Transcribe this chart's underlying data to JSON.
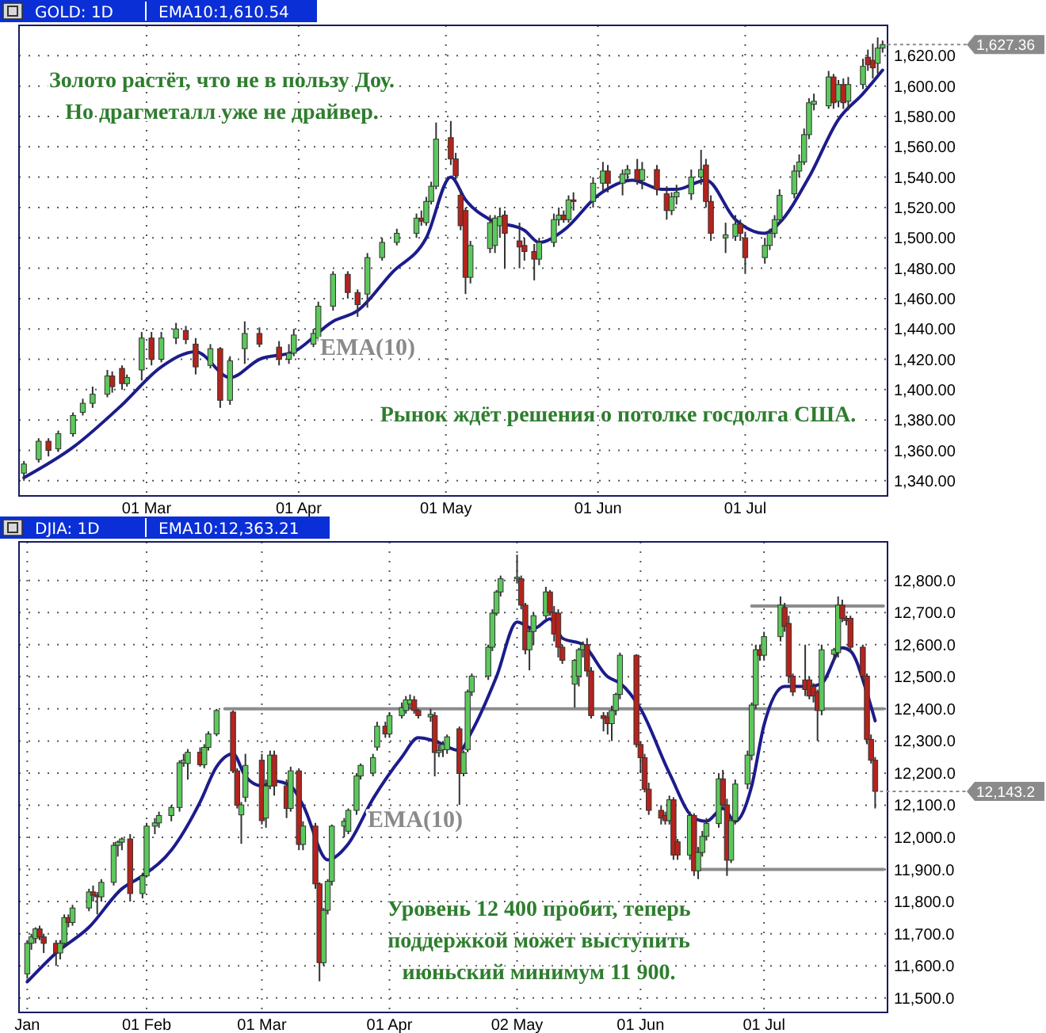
{
  "chart_data": [
    {
      "type": "candlestick",
      "title": "GOLD: 1D",
      "subtitle": "EMA10:1,610.54",
      "grid": true,
      "xlim": [
        "--02-03",
        "--07-30"
      ],
      "xticks": [
        {
          "value": "--03-01",
          "label": "01 Mar"
        },
        {
          "value": "--04-01",
          "label": "01 Apr"
        },
        {
          "value": "--05-01",
          "label": "01 May"
        },
        {
          "value": "--06-01",
          "label": "01 Jun"
        },
        {
          "value": "--07-01",
          "label": "01 Jul"
        }
      ],
      "ylim": [
        1330,
        1640
      ],
      "yticks": [
        {
          "value": 1340,
          "label": "1,340.00"
        },
        {
          "value": 1360,
          "label": "1,360.00"
        },
        {
          "value": 1380,
          "label": "1,380.00"
        },
        {
          "value": 1400,
          "label": "1,400.00"
        },
        {
          "value": 1420,
          "label": "1,420.00"
        },
        {
          "value": 1440,
          "label": "1,440.00"
        },
        {
          "value": 1460,
          "label": "1,460.00"
        },
        {
          "value": 1480,
          "label": "1,480.00"
        },
        {
          "value": 1500,
          "label": "1,500.00"
        },
        {
          "value": 1520,
          "label": "1,520.00"
        },
        {
          "value": 1540,
          "label": "1,540.00"
        },
        {
          "value": 1560,
          "label": "1,560.00"
        },
        {
          "value": 1580,
          "label": "1,580.00"
        },
        {
          "value": 1600,
          "label": "1,600.00"
        },
        {
          "value": 1620,
          "label": "1,620.00"
        }
      ],
      "annotations": [
        "Золото растёт, что не в пользу Доу.",
        "Но драгметалл уже не драйвер.",
        "EMA(10)",
        "Рынок ждёт решения о потолке госдолга США.",
        {
          "text": "1,627.36",
          "x": "--07-29",
          "y": 1627.36
        }
      ],
      "series": [
        {
          "type": "line",
          "color": "#1c1c8c",
          "x": [
            "--02-04",
            "--02-14",
            "--02-24",
            "--03-04",
            "--03-11",
            "--03-18",
            "--03-24",
            "--03-31",
            "--04-08",
            "--04-13",
            "--04-20",
            "--04-27",
            "--05-02",
            "--05-05",
            "--05-10",
            "--05-17",
            "--05-20",
            "--05-25",
            "--06-01",
            "--06-08",
            "--06-14",
            "--06-17",
            "--06-23",
            "--06-29",
            "--07-05",
            "--07-08",
            "--07-14",
            "--07-20",
            "--07-25",
            "--07-29"
          ],
          "values": [
            1342,
            1362,
            1390,
            1415,
            1425,
            1408,
            1420,
            1425,
            1445,
            1452,
            1477,
            1500,
            1540,
            1525,
            1512,
            1505,
            1497,
            1505,
            1528,
            1538,
            1532,
            1532,
            1538,
            1512,
            1503,
            1510,
            1540,
            1578,
            1595,
            1610.5
          ]
        },
        {
          "type": "candlestick",
          "x": [
            "--02-04",
            "--02-07",
            "--02-09",
            "--02-11",
            "--02-14",
            "--02-16",
            "--02-18",
            "--02-21",
            "--02-22",
            "--02-24",
            "--02-25",
            "--02-28",
            "--03-02",
            "--03-04",
            "--03-07",
            "--03-09",
            "--03-11",
            "--03-14",
            "--03-16",
            "--03-18",
            "--03-21",
            "--03-24",
            "--03-28",
            "--03-30",
            "--03-31",
            "--04-04",
            "--04-05",
            "--04-08",
            "--04-11",
            "--04-13",
            "--04-15",
            "--04-18",
            "--04-21",
            "--04-25",
            "--04-26",
            "--04-27",
            "--04-28",
            "--04-29",
            "--05-02",
            "--05-03",
            "--05-04",
            "--05-05",
            "--05-06",
            "--05-10",
            "--05-11",
            "--05-12",
            "--05-13",
            "--05-16",
            "--05-17",
            "--05-19",
            "--05-20",
            "--05-23",
            "--05-24",
            "--05-25",
            "--05-26",
            "--05-27",
            "--05-31",
            "--06-02",
            "--06-03",
            "--06-06",
            "--06-07",
            "--06-09",
            "--06-10",
            "--06-13",
            "--06-15",
            "--06-16",
            "--06-17",
            "--06-20",
            "--06-22",
            "--06-23",
            "--06-24",
            "--06-27",
            "--06-29",
            "--06-30",
            "--07-01",
            "--07-05",
            "--07-06",
            "--07-07",
            "--07-08",
            "--07-11",
            "--07-12",
            "--07-13",
            "--07-14",
            "--07-15",
            "--07-18",
            "--07-19",
            "--07-20",
            "--07-21",
            "--07-22",
            "--07-25",
            "--07-26",
            "--07-27",
            "--07-28",
            "--07-29"
          ],
          "ohlc": [
            [
              1345,
              1353,
              1340,
              1351
            ],
            [
              1354,
              1368,
              1352,
              1366
            ],
            [
              1366,
              1368,
              1356,
              1360
            ],
            [
              1361,
              1373,
              1359,
              1371
            ],
            [
              1371,
              1385,
              1369,
              1383
            ],
            [
              1385,
              1394,
              1383,
              1391
            ],
            [
              1391,
              1402,
              1388,
              1397
            ],
            [
              1397,
              1413,
              1395,
              1409
            ],
            [
              1409,
              1412,
              1398,
              1402
            ],
            [
              1414,
              1416,
              1400,
              1404
            ],
            [
              1404,
              1410,
              1402,
              1408
            ],
            [
              1413,
              1438,
              1406,
              1434
            ],
            [
              1434,
              1438,
              1416,
              1420
            ],
            [
              1420,
              1438,
              1418,
              1434
            ],
            [
              1434,
              1444,
              1430,
              1440
            ],
            [
              1439,
              1442,
              1430,
              1433
            ],
            [
              1430,
              1434,
              1410,
              1415
            ],
            [
              1416,
              1430,
              1414,
              1427
            ],
            [
              1427,
              1428,
              1388,
              1393
            ],
            [
              1393,
              1422,
              1390,
              1419
            ],
            [
              1427,
              1445,
              1417,
              1437
            ],
            [
              1437,
              1441,
              1428,
              1430
            ],
            [
              1428,
              1432,
              1416,
              1420
            ],
            [
              1420,
              1430,
              1417,
              1424
            ],
            [
              1424,
              1440,
              1422,
              1436
            ],
            [
              1430,
              1440,
              1428,
              1437
            ],
            [
              1434,
              1458,
              1432,
              1455
            ],
            [
              1455,
              1478,
              1452,
              1476
            ],
            [
              1476,
              1478,
              1460,
              1464
            ],
            [
              1464,
              1466,
              1448,
              1456
            ],
            [
              1463,
              1490,
              1454,
              1487
            ],
            [
              1487,
              1500,
              1485,
              1497
            ],
            [
              1497,
              1506,
              1495,
              1503
            ],
            [
              1503,
              1516,
              1500,
              1513
            ],
            [
              1513,
              1518,
              1508,
              1511
            ],
            [
              1510,
              1527,
              1508,
              1524
            ],
            [
              1524,
              1537,
              1522,
              1534
            ],
            [
              1534,
              1576,
              1532,
              1565
            ],
            [
              1566,
              1577,
              1548,
              1552
            ],
            [
              1552,
              1556,
              1538,
              1541
            ],
            [
              1528,
              1532,
              1505,
              1508
            ],
            [
              1518,
              1520,
              1463,
              1474
            ],
            [
              1474,
              1498,
              1470,
              1495
            ],
            [
              1493,
              1515,
              1490,
              1510
            ],
            [
              1495,
              1515,
              1490,
              1513
            ],
            [
              1508,
              1520,
              1500,
              1514
            ],
            [
              1515,
              1518,
              1480,
              1503
            ],
            [
              1498,
              1510,
              1480,
              1494
            ],
            [
              1495,
              1500,
              1485,
              1491
            ],
            [
              1491,
              1496,
              1472,
              1486
            ],
            [
              1486,
              1500,
              1482,
              1497
            ],
            [
              1497,
              1516,
              1494,
              1512
            ],
            [
              1512,
              1520,
              1508,
              1515
            ],
            [
              1515,
              1518,
              1510,
              1512
            ],
            [
              1512,
              1528,
              1510,
              1525
            ],
            [
              1525,
              1530,
              1518,
              1524
            ],
            [
              1524,
              1540,
              1520,
              1536
            ],
            [
              1536,
              1550,
              1530,
              1544
            ],
            [
              1544,
              1548,
              1530,
              1536
            ],
            [
              1536,
              1545,
              1528,
              1542
            ],
            [
              1542,
              1548,
              1538,
              1545
            ],
            [
              1545,
              1552,
              1535,
              1538
            ],
            [
              1538,
              1550,
              1532,
              1545
            ],
            [
              1545,
              1548,
              1528,
              1532
            ],
            [
              1529,
              1534,
              1512,
              1518
            ],
            [
              1518,
              1530,
              1515,
              1527
            ],
            [
              1527,
              1535,
              1522,
              1530
            ],
            [
              1529,
              1545,
              1525,
              1540
            ],
            [
              1540,
              1558,
              1535,
              1545
            ],
            [
              1548,
              1552,
              1520,
              1524
            ],
            [
              1524,
              1528,
              1498,
              1503
            ],
            [
              1500,
              1510,
              1490,
              1502
            ],
            [
              1501,
              1515,
              1498,
              1509
            ],
            [
              1509,
              1512,
              1498,
              1503
            ],
            [
              1500,
              1504,
              1477,
              1487
            ],
            [
              1487,
              1500,
              1483,
              1495
            ],
            [
              1495,
              1506,
              1492,
              1503
            ],
            [
              1503,
              1515,
              1500,
              1512
            ],
            [
              1512,
              1532,
              1510,
              1528
            ],
            [
              1529,
              1548,
              1526,
              1544
            ],
            [
              1544,
              1555,
              1540,
              1550
            ],
            [
              1550,
              1572,
              1548,
              1568
            ],
            [
              1568,
              1592,
              1565,
              1589
            ],
            [
              1588,
              1595,
              1584,
              1590
            ],
            [
              1587,
              1610,
              1585,
              1606
            ],
            [
              1606,
              1608,
              1585,
              1589
            ],
            [
              1590,
              1604,
              1586,
              1601
            ],
            [
              1601,
              1605,
              1585,
              1589
            ],
            [
              1590,
              1606,
              1584,
              1601
            ],
            [
              1601,
              1618,
              1598,
              1613
            ],
            [
              1619,
              1624,
              1610,
              1614
            ],
            [
              1617,
              1628,
              1605,
              1612
            ],
            [
              1615,
              1632,
              1608,
              1625
            ],
            [
              1625,
              1630,
              1622,
              1627.36
            ]
          ]
        }
      ]
    },
    {
      "type": "candlestick",
      "title": "DJIA: 1D",
      "subtitle": "EMA10:12,363.21",
      "grid": true,
      "xlim": [
        "--01-01",
        "--07-31"
      ],
      "xticks": [
        {
          "value": "--01-03",
          "label": "Jan"
        },
        {
          "value": "--02-01",
          "label": "01 Feb"
        },
        {
          "value": "--03-01",
          "label": "01 Mar"
        },
        {
          "value": "--04-01",
          "label": "01 Apr"
        },
        {
          "value": "--05-02",
          "label": "02 May"
        },
        {
          "value": "--06-01",
          "label": "01 Jun"
        },
        {
          "value": "--07-01",
          "label": "01 Jul"
        }
      ],
      "ylim": [
        11455,
        12920
      ],
      "yticks": [
        {
          "value": 11500,
          "label": "11,500.0"
        },
        {
          "value": 11600,
          "label": "11,600.0"
        },
        {
          "value": 11700,
          "label": "11,700.0"
        },
        {
          "value": 11800,
          "label": "11,800.0"
        },
        {
          "value": 11900,
          "label": "11,900.0"
        },
        {
          "value": 12000,
          "label": "12,000.0"
        },
        {
          "value": 12100,
          "label": "12,100.0"
        },
        {
          "value": 12200,
          "label": "12,200.0"
        },
        {
          "value": 12300,
          "label": "12,300.0"
        },
        {
          "value": 12400,
          "label": "12,400.0"
        },
        {
          "value": 12500,
          "label": "12,500.0"
        },
        {
          "value": 12600,
          "label": "12,600.0"
        },
        {
          "value": 12700,
          "label": "12,700.0"
        },
        {
          "value": 12800,
          "label": "12,800.0"
        }
      ],
      "annotations": [
        "EMA(10)",
        "Уровень 12 400 пробит, теперь",
        "поддержкой может выступить",
        "июньский минимум 11 900.",
        {
          "text": "12,143.2",
          "x": "--07-28",
          "y": 12143.2
        }
      ],
      "series": [
        {
          "type": "line",
          "color": "#8c8c8c",
          "x": [
            "--02-20",
            "--07-30"
          ],
          "values": [
            12400,
            12400
          ]
        },
        {
          "type": "line",
          "color": "#8c8c8c",
          "x": [
            "--06-28",
            "--07-30"
          ],
          "values": [
            12720,
            12720
          ]
        },
        {
          "type": "line",
          "color": "#8c8c8c",
          "x": [
            "--06-15",
            "--07-30"
          ],
          "values": [
            11900,
            11900
          ]
        },
        {
          "type": "line",
          "color": "#1c1c8c",
          "x": [
            "--01-03",
            "--01-10",
            "--01-18",
            "--01-26",
            "--01-31",
            "--02-07",
            "--02-14",
            "--02-18",
            "--02-22",
            "--02-25",
            "--03-01",
            "--03-04",
            "--03-08",
            "--03-11",
            "--03-17",
            "--03-22",
            "--03-28",
            "--04-04",
            "--04-08",
            "--04-12",
            "--04-18",
            "--04-21",
            "--04-27",
            "--05-02",
            "--05-06",
            "--05-10",
            "--05-13",
            "--05-18",
            "--05-24",
            "--05-27",
            "--06-01",
            "--06-08",
            "--06-14",
            "--06-17",
            "--06-21",
            "--06-24",
            "--06-28",
            "--07-01",
            "--07-06",
            "--07-12",
            "--07-15",
            "--07-20",
            "--07-22",
            "--07-26",
            "--07-28"
          ],
          "values": [
            11550,
            11640,
            11720,
            11840,
            11880,
            11960,
            12110,
            12220,
            12260,
            12190,
            12160,
            12175,
            12160,
            12100,
            11930,
            11980,
            12120,
            12250,
            12310,
            12300,
            12270,
            12330,
            12500,
            12670,
            12650,
            12680,
            12620,
            12600,
            12500,
            12480,
            12400,
            12200,
            12060,
            12050,
            12090,
            12050,
            12160,
            12350,
            12470,
            12470,
            12480,
            12590,
            12580,
            12450,
            12363
          ]
        },
        {
          "type": "candlestick",
          "x": [
            "--01-03",
            "--01-04",
            "--01-05",
            "--01-06",
            "--01-07",
            "--01-10",
            "--01-11",
            "--01-12",
            "--01-13",
            "--01-14",
            "--01-18",
            "--01-19",
            "--01-20",
            "--01-21",
            "--01-24",
            "--01-25",
            "--01-26",
            "--01-28",
            "--01-31",
            "--02-01",
            "--02-03",
            "--02-04",
            "--02-07",
            "--02-09",
            "--02-10",
            "--02-11",
            "--02-14",
            "--02-15",
            "--02-16",
            "--02-18",
            "--02-22",
            "--02-23",
            "--02-24",
            "--02-25",
            "--03-01",
            "--03-02",
            "--03-03",
            "--03-04",
            "--03-07",
            "--03-08",
            "--03-10",
            "--03-11",
            "--03-14",
            "--03-15",
            "--03-16",
            "--03-17",
            "--03-18",
            "--03-21",
            "--03-22",
            "--03-24",
            "--03-25",
            "--03-28",
            "--03-29",
            "--03-31",
            "--04-01",
            "--04-04",
            "--04-05",
            "--04-06",
            "--04-07",
            "--04-08",
            "--04-11",
            "--04-12",
            "--04-13",
            "--04-14",
            "--04-15",
            "--04-18",
            "--04-19",
            "--04-20",
            "--04-21",
            "--04-25",
            "--04-26",
            "--04-27",
            "--04-28",
            "--05-02",
            "--05-03",
            "--05-04",
            "--05-05",
            "--05-06",
            "--05-09",
            "--05-10",
            "--05-11",
            "--05-12",
            "--05-13",
            "--05-16",
            "--05-17",
            "--05-18",
            "--05-19",
            "--05-20",
            "--05-23",
            "--05-24",
            "--05-25",
            "--05-26",
            "--05-27",
            "--05-31",
            "--06-01",
            "--06-02",
            "--06-03",
            "--06-06",
            "--06-07",
            "--06-08",
            "--06-09",
            "--06-10",
            "--06-13",
            "--06-14",
            "--06-15",
            "--06-16",
            "--06-17",
            "--06-20",
            "--06-21",
            "--06-22",
            "--06-23",
            "--06-24",
            "--06-27",
            "--06-28",
            "--06-29",
            "--06-30",
            "--07-01",
            "--07-05",
            "--07-06",
            "--07-07",
            "--07-08",
            "--07-11",
            "--07-12",
            "--07-13",
            "--07-14",
            "--07-15",
            "--07-18",
            "--07-19",
            "--07-20",
            "--07-21",
            "--07-22",
            "--07-25",
            "--07-26",
            "--07-27",
            "--07-28"
          ],
          "ohlc": [
            [
              11575,
              11680,
              11560,
              11670
            ],
            [
              11670,
              11700,
              11650,
              11690
            ],
            [
              11685,
              11720,
              11670,
              11715
            ],
            [
              11715,
              11725,
              11680,
              11690
            ],
            [
              11690,
              11700,
              11640,
              11670
            ],
            [
              11670,
              11680,
              11600,
              11640
            ],
            [
              11640,
              11680,
              11620,
              11670
            ],
            [
              11670,
              11760,
              11660,
              11750
            ],
            [
              11750,
              11760,
              11720,
              11735
            ],
            [
              11735,
              11790,
              11725,
              11780
            ],
            [
              11780,
              11840,
              11770,
              11830
            ],
            [
              11830,
              11850,
              11800,
              11820
            ],
            [
              11820,
              11830,
              11760,
              11815
            ],
            [
              11815,
              11870,
              11800,
              11860
            ],
            [
              11860,
              11985,
              11850,
              11975
            ],
            [
              11975,
              11990,
              11940,
              11985
            ],
            [
              11985,
              12000,
              11960,
              11995
            ],
            [
              11995,
              12010,
              11800,
              11825
            ],
            [
              11825,
              11890,
              11810,
              11880
            ],
            [
              11880,
              12045,
              11875,
              12035
            ],
            [
              12035,
              12060,
              12010,
              12045
            ],
            [
              12045,
              12080,
              12030,
              12068
            ],
            [
              12068,
              12100,
              12050,
              12093
            ],
            [
              12093,
              12240,
              12080,
              12232
            ],
            [
              12232,
              12260,
              12220,
              12240
            ],
            [
              12230,
              12275,
              12180,
              12265
            ],
            [
              12265,
              12280,
              12220,
              12226
            ],
            [
              12226,
              12290,
              12215,
              12280
            ],
            [
              12280,
              12330,
              12270,
              12322
            ],
            [
              12322,
              12400,
              12315,
              12395
            ],
            [
              12390,
              12395,
              12200,
              12207
            ],
            [
              12207,
              12215,
              12090,
              12100
            ],
            [
              12070,
              12110,
              11980,
              12101
            ],
            [
              12125,
              12260,
              12110,
              12224
            ],
            [
              12240,
              12260,
              12040,
              12052
            ],
            [
              12060,
              12180,
              12030,
              12160
            ],
            [
              12160,
              12270,
              12150,
              12256
            ],
            [
              12256,
              12270,
              12130,
              12160
            ],
            [
              12160,
              12180,
              12060,
              12090
            ],
            [
              12090,
              12220,
              12080,
              12207
            ],
            [
              12207,
              12215,
              11960,
              11978
            ],
            [
              11978,
              12050,
              11960,
              12035
            ],
            [
              12035,
              12045,
              11840,
              11855
            ],
            [
              11855,
              11860,
              11552,
              11610
            ],
            [
              11610,
              11780,
              11600,
              11773
            ],
            [
              11773,
              11870,
              11760,
              11863
            ],
            [
              11863,
              12040,
              11850,
              12035
            ],
            [
              12035,
              12060,
              12000,
              12050
            ],
            [
              12019,
              12090,
              12010,
              12084
            ],
            [
              12084,
              12200,
              12070,
              12191
            ],
            [
              12191,
              12230,
              12180,
              12224
            ],
            [
              12200,
              12260,
              12190,
              12248
            ],
            [
              12281,
              12360,
              12270,
              12346
            ],
            [
              12346,
              12360,
              12310,
              12322
            ],
            [
              12322,
              12390,
              12310,
              12379
            ],
            [
              12379,
              12420,
              12370,
              12404
            ],
            [
              12395,
              12440,
              12385,
              12428
            ],
            [
              12415,
              12445,
              12400,
              12428
            ],
            [
              12428,
              12440,
              12385,
              12395
            ],
            [
              12395,
              12400,
              12370,
              12379
            ],
            [
              12375,
              12400,
              12360,
              12383
            ],
            [
              12379,
              12390,
              12190,
              12264
            ],
            [
              12264,
              12290,
              12250,
              12270
            ],
            [
              12273,
              12300,
              12250,
              12289
            ],
            [
              12273,
              12320,
              12260,
              12313
            ],
            [
              12338,
              12345,
              12101,
              12199
            ],
            [
              12199,
              12270,
              12190,
              12264
            ],
            [
              12273,
              12460,
              12265,
              12453
            ],
            [
              12453,
              12510,
              12440,
              12502
            ],
            [
              12502,
              12600,
              12490,
              12592
            ],
            [
              12592,
              12710,
              12580,
              12698
            ],
            [
              12698,
              12770,
              12690,
              12764
            ],
            [
              12764,
              12815,
              12750,
              12805
            ],
            [
              12805,
              12880,
              12790,
              12810
            ],
            [
              12805,
              12815,
              12710,
              12723
            ],
            [
              12723,
              12730,
              12570,
              12584
            ],
            [
              12584,
              12650,
              12520,
              12641
            ],
            [
              12641,
              12700,
              12600,
              12690
            ],
            [
              12690,
              12780,
              12680,
              12764
            ],
            [
              12764,
              12770,
              12690,
              12700
            ],
            [
              12700,
              12720,
              12610,
              12633
            ],
            [
              12698,
              12710,
              12560,
              12592
            ],
            [
              12592,
              12600,
              12540,
              12551
            ],
            [
              12477,
              12555,
              12404,
              12551
            ],
            [
              12502,
              12590,
              12470,
              12584
            ],
            [
              12584,
              12610,
              12560,
              12600
            ],
            [
              12600,
              12620,
              12500,
              12518
            ],
            [
              12518,
              12530,
              12370,
              12379
            ],
            [
              12379,
              12390,
              12330,
              12370
            ],
            [
              12375,
              12390,
              12320,
              12354
            ],
            [
              12354,
              12410,
              12300,
              12395
            ],
            [
              12395,
              12450,
              12380,
              12445
            ],
            [
              12445,
              12575,
              12430,
              12567
            ],
            [
              12567,
              12570,
              12280,
              12289
            ],
            [
              12289,
              12300,
              12200,
              12248
            ],
            [
              12248,
              12260,
              12140,
              12150
            ],
            [
              12150,
              12170,
              12070,
              12084
            ],
            [
              12084,
              12100,
              12040,
              12060
            ],
            [
              12068,
              12080,
              12040,
              12052
            ],
            [
              12052,
              12130,
              12040,
              12117
            ],
            [
              12117,
              12125,
              11930,
              11945
            ],
            [
              11986,
              11995,
              11930,
              11945
            ],
            [
              11945,
              12080,
              11930,
              12068
            ],
            [
              12068,
              12075,
              11880,
              11896
            ],
            [
              11896,
              11970,
              11870,
              11953
            ],
            [
              11953,
              12020,
              11940,
              12003
            ],
            [
              12003,
              12060,
              11990,
              12043
            ],
            [
              12043,
              12200,
              12030,
              12182
            ],
            [
              12182,
              12210,
              12090,
              12101
            ],
            [
              12101,
              12120,
              11880,
              11929
            ],
            [
              11929,
              12060,
              11920,
              12052
            ],
            [
              12052,
              12180,
              12040,
              12166
            ],
            [
              12166,
              12270,
              12150,
              12256
            ],
            [
              12256,
              12420,
              12240,
              12412
            ],
            [
              12412,
              12600,
              12400,
              12584
            ],
            [
              12584,
              12600,
              12550,
              12567
            ],
            [
              12567,
              12640,
              12550,
              12625
            ],
            [
              12625,
              12750,
              12610,
              12723
            ],
            [
              12715,
              12730,
              12640,
              12657
            ],
            [
              12666,
              12690,
              12480,
              12502
            ],
            [
              12502,
              12510,
              12440,
              12453
            ],
            [
              12490,
              12600,
              12440,
              12460
            ],
            [
              12490,
              12500,
              12430,
              12440
            ],
            [
              12470,
              12480,
              12420,
              12440
            ],
            [
              12453,
              12460,
              12300,
              12395
            ],
            [
              12395,
              12600,
              12380,
              12584
            ],
            [
              12570,
              12590,
              12550,
              12584
            ],
            [
              12575,
              12750,
              12560,
              12723
            ],
            [
              12723,
              12740,
              12670,
              12682
            ],
            [
              12682,
              12690,
              12660,
              12675
            ],
            [
              12682,
              12690,
              12580,
              12592
            ],
            [
              12592,
              12600,
              12490,
              12502
            ],
            [
              12502,
              12510,
              12290,
              12305
            ],
            [
              12305,
              12320,
              12230,
              12240
            ],
            [
              12240,
              12250,
              12090,
              12143.2
            ]
          ]
        }
      ]
    }
  ]
}
